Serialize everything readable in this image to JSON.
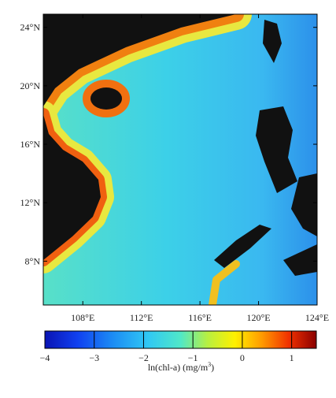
{
  "map": {
    "lon_ticks": [
      {
        "value": 108,
        "label": "108°E"
      },
      {
        "value": 112,
        "label": "112°E"
      },
      {
        "value": 116,
        "label": "116°E"
      },
      {
        "value": 120,
        "label": "120°E"
      },
      {
        "value": 124,
        "label": "124°E"
      }
    ],
    "lat_ticks": [
      {
        "value": 8,
        "label": "8°N"
      },
      {
        "value": 12,
        "label": "12°N"
      },
      {
        "value": 16,
        "label": "16°N"
      },
      {
        "value": 20,
        "label": "20°N"
      },
      {
        "value": 24,
        "label": "24°N"
      }
    ],
    "xlim": [
      105.3,
      124
    ],
    "ylim": [
      5.0,
      24.9
    ]
  },
  "colorbar": {
    "clim": [
      -4,
      1.5
    ],
    "ticks": [
      {
        "value": -4,
        "label": "−4"
      },
      {
        "value": -3,
        "label": "−3"
      },
      {
        "value": -2,
        "label": "−2"
      },
      {
        "value": -1,
        "label": "−1"
      },
      {
        "value": 0,
        "label": "0"
      },
      {
        "value": 1,
        "label": "1"
      }
    ],
    "label": {
      "text": "ln(chl-a) (mg/m",
      "superscript": "3",
      "close": ")"
    }
  }
}
